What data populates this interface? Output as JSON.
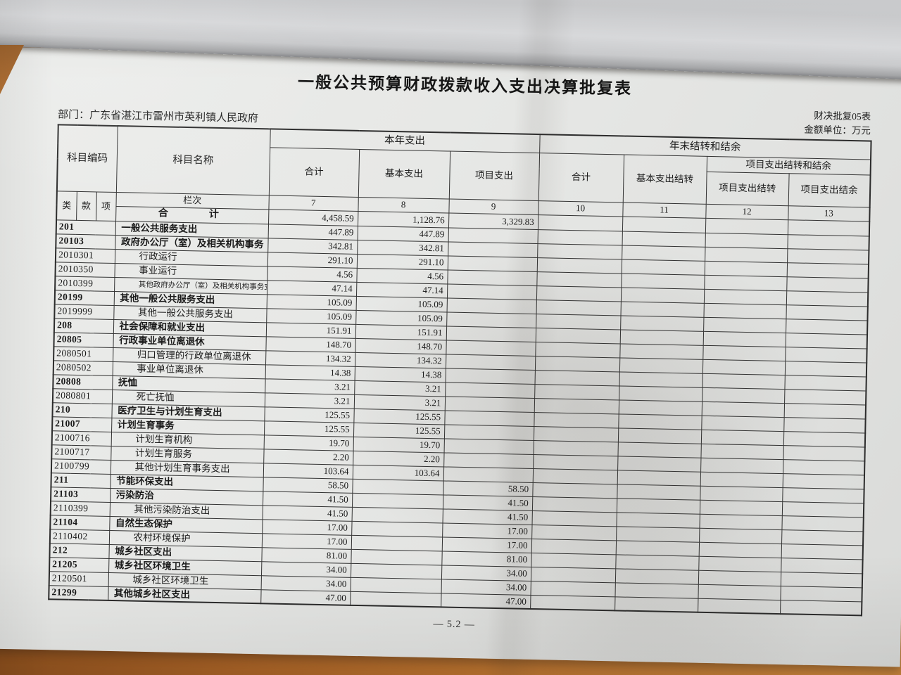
{
  "colors": {
    "paper": "#e7e8e6",
    "wood": "#b06a28",
    "ink": "#1b1b1b"
  },
  "page": {
    "title": "一般公共预算财政拨款收入支出决算批复表",
    "department": "部门：广东省湛江市雷州市英利镇人民政府",
    "form_code": "财决批复05表",
    "amount_unit": "金额单位：万元",
    "page_number": "— 5.2 —"
  },
  "table": {
    "header": {
      "subject_code": "科目编码",
      "subject_name": "科目名称",
      "current_year_group": "本年支出",
      "year_end_group": "年末结转和结余",
      "col_total": "合计",
      "col_basic": "基本支出",
      "col_project": "项目支出",
      "col_total2": "合计",
      "col_basic_carry": "基本支出结转",
      "project_carry_group": "项目支出结转和结余",
      "col_project_carry": "项目支出结转",
      "col_project_surplus": "项目支出结余",
      "code_class": "类",
      "code_section": "款",
      "code_item": "项",
      "lanci_label": "栏次",
      "column_numbers": [
        "7",
        "8",
        "9",
        "10",
        "11",
        "12",
        "13"
      ]
    },
    "total_row": {
      "label": "合　　计",
      "values": [
        "4,458.59",
        "1,128.76",
        "3,329.83",
        "",
        "",
        "",
        ""
      ]
    },
    "rows": [
      {
        "code": "201",
        "name": "一般公共服务支出",
        "bold": true,
        "indent": false,
        "small": false,
        "values": [
          "447.89",
          "447.89",
          "",
          "",
          "",
          "",
          ""
        ]
      },
      {
        "code": "20103",
        "name": "政府办公厅（室）及相关机构事务",
        "bold": true,
        "indent": false,
        "small": false,
        "values": [
          "342.81",
          "342.81",
          "",
          "",
          "",
          "",
          ""
        ]
      },
      {
        "code": "2010301",
        "name": "行政运行",
        "bold": false,
        "indent": true,
        "small": false,
        "values": [
          "291.10",
          "291.10",
          "",
          "",
          "",
          "",
          ""
        ]
      },
      {
        "code": "2010350",
        "name": "事业运行",
        "bold": false,
        "indent": true,
        "small": false,
        "values": [
          "4.56",
          "4.56",
          "",
          "",
          "",
          "",
          ""
        ]
      },
      {
        "code": "2010399",
        "name": "其他政府办公厅（室）及相关机构事务支出",
        "bold": false,
        "indent": true,
        "small": true,
        "values": [
          "47.14",
          "47.14",
          "",
          "",
          "",
          "",
          ""
        ]
      },
      {
        "code": "20199",
        "name": "其他一般公共服务支出",
        "bold": true,
        "indent": false,
        "small": false,
        "values": [
          "105.09",
          "105.09",
          "",
          "",
          "",
          "",
          ""
        ]
      },
      {
        "code": "2019999",
        "name": "其他一般公共服务支出",
        "bold": false,
        "indent": true,
        "small": false,
        "values": [
          "105.09",
          "105.09",
          "",
          "",
          "",
          "",
          ""
        ]
      },
      {
        "code": "208",
        "name": "社会保障和就业支出",
        "bold": true,
        "indent": false,
        "small": false,
        "values": [
          "151.91",
          "151.91",
          "",
          "",
          "",
          "",
          ""
        ]
      },
      {
        "code": "20805",
        "name": "行政事业单位离退休",
        "bold": true,
        "indent": false,
        "small": false,
        "values": [
          "148.70",
          "148.70",
          "",
          "",
          "",
          "",
          ""
        ]
      },
      {
        "code": "2080501",
        "name": "归口管理的行政单位离退休",
        "bold": false,
        "indent": true,
        "small": false,
        "values": [
          "134.32",
          "134.32",
          "",
          "",
          "",
          "",
          ""
        ]
      },
      {
        "code": "2080502",
        "name": "事业单位离退休",
        "bold": false,
        "indent": true,
        "small": false,
        "values": [
          "14.38",
          "14.38",
          "",
          "",
          "",
          "",
          ""
        ]
      },
      {
        "code": "20808",
        "name": "抚恤",
        "bold": true,
        "indent": false,
        "small": false,
        "values": [
          "3.21",
          "3.21",
          "",
          "",
          "",
          "",
          ""
        ]
      },
      {
        "code": "2080801",
        "name": "死亡抚恤",
        "bold": false,
        "indent": true,
        "small": false,
        "values": [
          "3.21",
          "3.21",
          "",
          "",
          "",
          "",
          ""
        ]
      },
      {
        "code": "210",
        "name": "医疗卫生与计划生育支出",
        "bold": true,
        "indent": false,
        "small": false,
        "values": [
          "125.55",
          "125.55",
          "",
          "",
          "",
          "",
          ""
        ]
      },
      {
        "code": "21007",
        "name": "计划生育事务",
        "bold": true,
        "indent": false,
        "small": false,
        "values": [
          "125.55",
          "125.55",
          "",
          "",
          "",
          "",
          ""
        ]
      },
      {
        "code": "2100716",
        "name": "计划生育机构",
        "bold": false,
        "indent": true,
        "small": false,
        "values": [
          "19.70",
          "19.70",
          "",
          "",
          "",
          "",
          ""
        ]
      },
      {
        "code": "2100717",
        "name": "计划生育服务",
        "bold": false,
        "indent": true,
        "small": false,
        "values": [
          "2.20",
          "2.20",
          "",
          "",
          "",
          "",
          ""
        ]
      },
      {
        "code": "2100799",
        "name": "其他计划生育事务支出",
        "bold": false,
        "indent": true,
        "small": false,
        "values": [
          "103.64",
          "103.64",
          "",
          "",
          "",
          "",
          ""
        ]
      },
      {
        "code": "211",
        "name": "节能环保支出",
        "bold": true,
        "indent": false,
        "small": false,
        "values": [
          "58.50",
          "",
          "58.50",
          "",
          "",
          "",
          ""
        ]
      },
      {
        "code": "21103",
        "name": "污染防治",
        "bold": true,
        "indent": false,
        "small": false,
        "values": [
          "41.50",
          "",
          "41.50",
          "",
          "",
          "",
          ""
        ]
      },
      {
        "code": "2110399",
        "name": "其他污染防治支出",
        "bold": false,
        "indent": true,
        "small": false,
        "values": [
          "41.50",
          "",
          "41.50",
          "",
          "",
          "",
          ""
        ]
      },
      {
        "code": "21104",
        "name": "自然生态保护",
        "bold": true,
        "indent": false,
        "small": false,
        "values": [
          "17.00",
          "",
          "17.00",
          "",
          "",
          "",
          ""
        ]
      },
      {
        "code": "2110402",
        "name": "农村环境保护",
        "bold": false,
        "indent": true,
        "small": false,
        "values": [
          "17.00",
          "",
          "17.00",
          "",
          "",
          "",
          ""
        ]
      },
      {
        "code": "212",
        "name": "城乡社区支出",
        "bold": true,
        "indent": false,
        "small": false,
        "values": [
          "81.00",
          "",
          "81.00",
          "",
          "",
          "",
          ""
        ]
      },
      {
        "code": "21205",
        "name": "城乡社区环境卫生",
        "bold": true,
        "indent": false,
        "small": false,
        "values": [
          "34.00",
          "",
          "34.00",
          "",
          "",
          "",
          ""
        ]
      },
      {
        "code": "2120501",
        "name": "城乡社区环境卫生",
        "bold": false,
        "indent": true,
        "small": false,
        "values": [
          "34.00",
          "",
          "34.00",
          "",
          "",
          "",
          ""
        ]
      },
      {
        "code": "21299",
        "name": "其他城乡社区支出",
        "bold": true,
        "indent": false,
        "small": false,
        "values": [
          "47.00",
          "",
          "47.00",
          "",
          "",
          "",
          ""
        ]
      }
    ]
  }
}
